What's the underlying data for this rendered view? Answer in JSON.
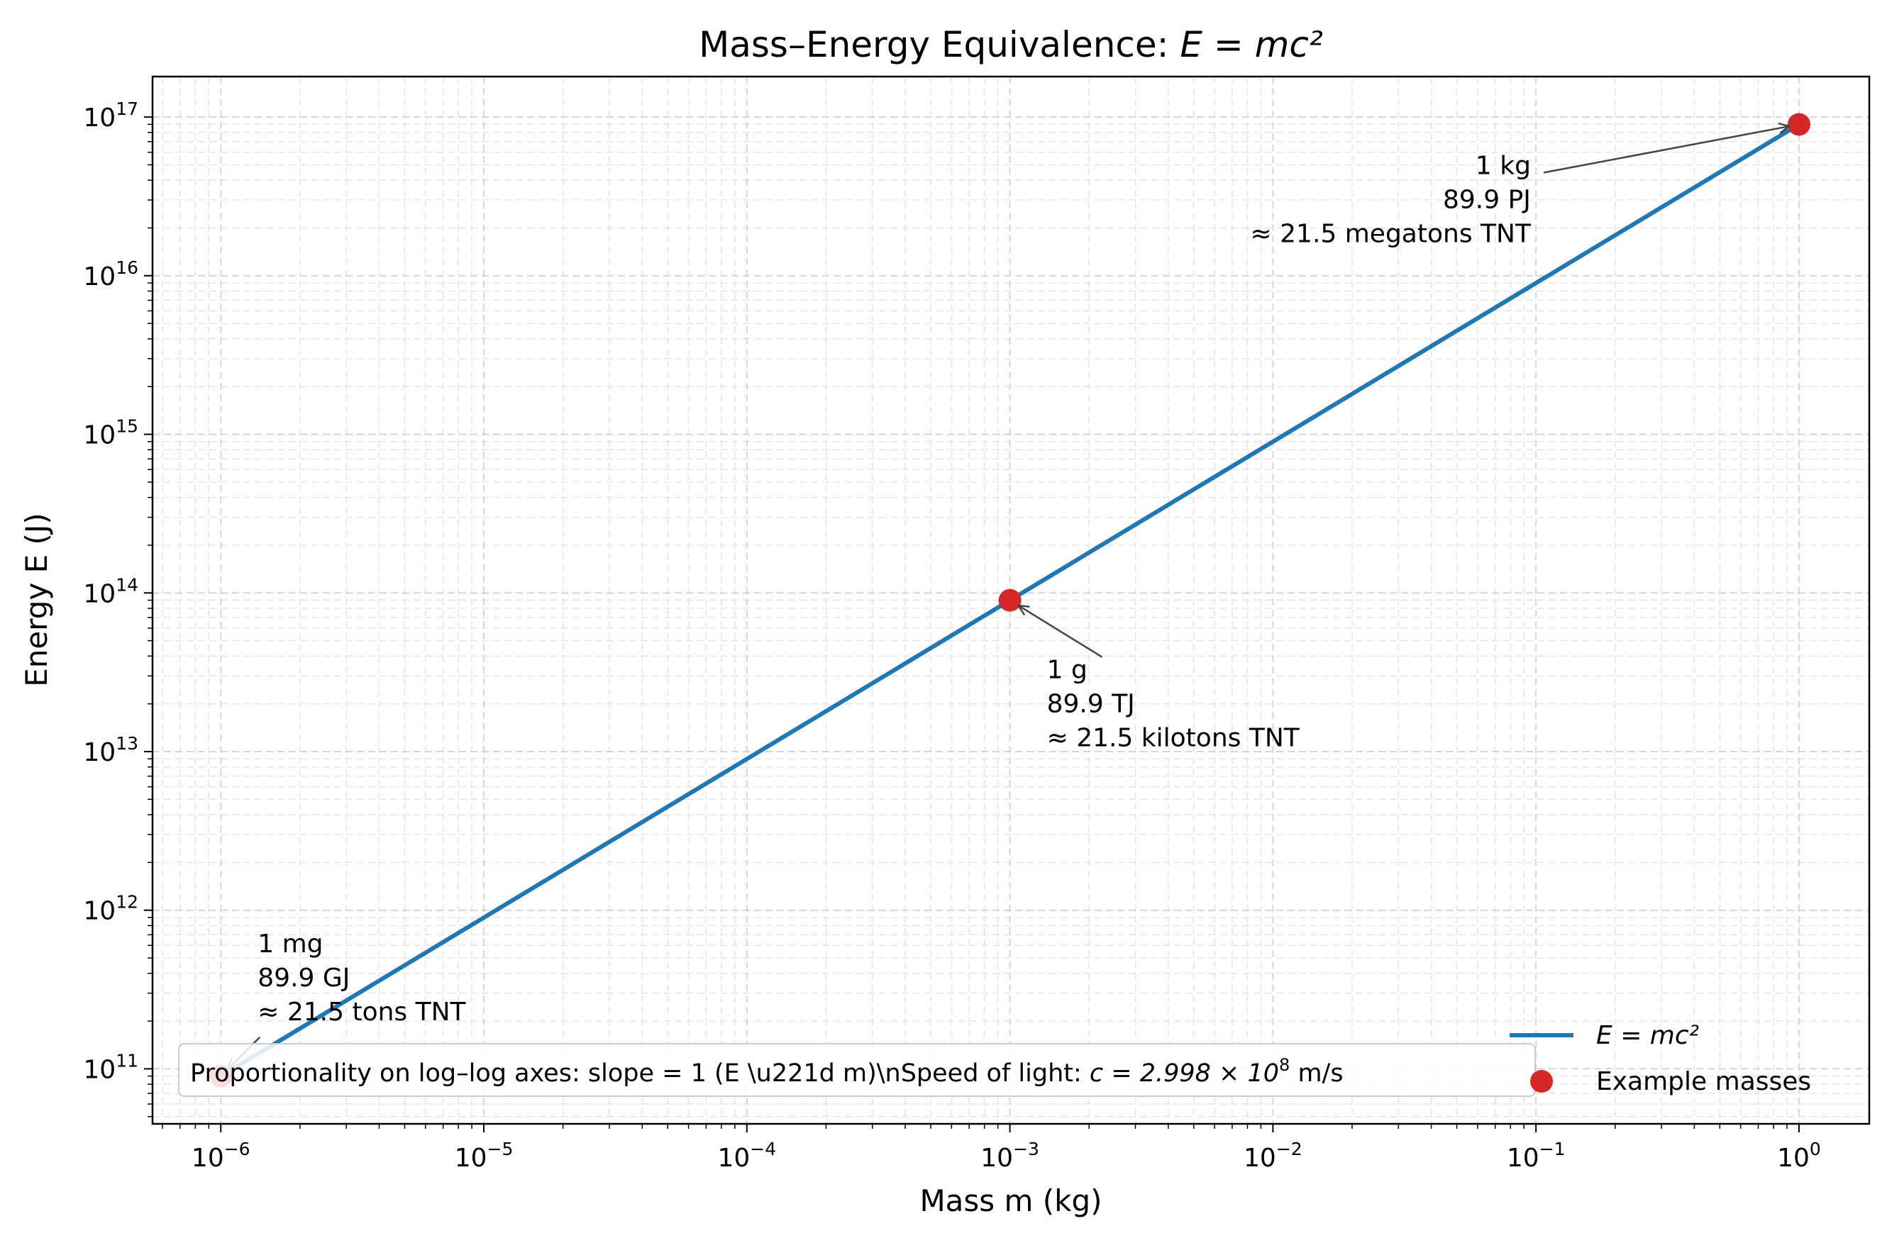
{
  "chart_data": {
    "type": "line",
    "title_prefix": "Mass–Energy Equivalence: ",
    "title_math": "E = mc²",
    "xlabel": "Mass m (kg)",
    "ylabel": "Energy E (J)",
    "xscale": "log",
    "yscale": "log",
    "xlim": [
      5.5e-07,
      1.85
    ],
    "ylim": [
      45000000000.0,
      1.8e+17
    ],
    "grid": true,
    "x_ticks": [
      {
        "value": 1e-06,
        "base": "10",
        "exp": "−6"
      },
      {
        "value": 1e-05,
        "base": "10",
        "exp": "−5"
      },
      {
        "value": 0.0001,
        "base": "10",
        "exp": "−4"
      },
      {
        "value": 0.001,
        "base": "10",
        "exp": "−3"
      },
      {
        "value": 0.01,
        "base": "10",
        "exp": "−2"
      },
      {
        "value": 0.1,
        "base": "10",
        "exp": "−1"
      },
      {
        "value": 1,
        "base": "10",
        "exp": "0"
      }
    ],
    "y_ticks": [
      {
        "value": 100000000000.0,
        "base": "10",
        "exp": "11"
      },
      {
        "value": 1000000000000.0,
        "base": "10",
        "exp": "12"
      },
      {
        "value": 10000000000000.0,
        "base": "10",
        "exp": "13"
      },
      {
        "value": 100000000000000.0,
        "base": "10",
        "exp": "14"
      },
      {
        "value": 1000000000000000.0,
        "base": "10",
        "exp": "15"
      },
      {
        "value": 1e+16,
        "base": "10",
        "exp": "16"
      },
      {
        "value": 1e+17,
        "base": "10",
        "exp": "17"
      }
    ],
    "series": [
      {
        "name": "E = mc²",
        "kind": "line",
        "color": "#1f77b4",
        "x": [
          1e-06,
          1
        ],
        "y": [
          89875500000.0,
          8.98755e+16
        ]
      },
      {
        "name": "Example masses",
        "kind": "scatter",
        "color": "#d62728",
        "x": [
          1e-06,
          0.001,
          1
        ],
        "y": [
          89875500000.0,
          89875500000000.0,
          8.98755e+16
        ]
      }
    ],
    "annotations": [
      {
        "lines": [
          "1 mg",
          "89.9 GJ",
          "≈ 21.5 tons TNT"
        ],
        "x": 1e-06,
        "y": 89875500000.0
      },
      {
        "lines": [
          "1 g",
          "89.9 TJ",
          "≈ 21.5 kilotons TNT"
        ],
        "x": 0.001,
        "y": 89875500000000.0
      },
      {
        "lines": [
          "1 kg",
          "89.9 PJ",
          "≈ 21.5 megatons TNT"
        ],
        "x": 1,
        "y": 8.98755e+16
      }
    ],
    "legend": {
      "placement": "lower-right",
      "entries": [
        "E = mc²",
        "Example masses"
      ]
    },
    "info_box": {
      "text_plain": "Proportionality on log–log axes: slope = 1 (E \\u221d m)\\nSpeed of light: ",
      "text_math": "c = 2.998 × 10",
      "text_math_exp": "8",
      "text_unit": " m/s"
    }
  }
}
